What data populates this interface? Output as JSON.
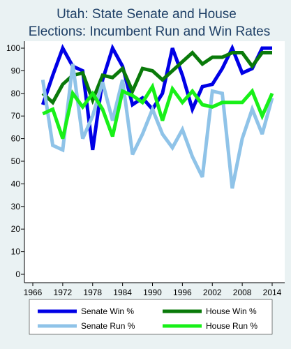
{
  "chart_data": {
    "type": "line",
    "title": [
      "Utah: State Senate and House",
      "Elections: Incumbent Run and Win Rates"
    ],
    "xlabel": "",
    "ylabel": "",
    "xlim": [
      1964,
      2015
    ],
    "ylim": [
      0,
      100
    ],
    "x_ticks": [
      1966,
      1972,
      1978,
      1984,
      1990,
      1996,
      2002,
      2008,
      2014
    ],
    "y_ticks": [
      0,
      10,
      20,
      30,
      40,
      50,
      60,
      70,
      80,
      90,
      100
    ],
    "grid": false,
    "legend_placement": "bottom",
    "x": [
      1968,
      1970,
      1972,
      1974,
      1976,
      1978,
      1980,
      1982,
      1984,
      1986,
      1988,
      1990,
      1992,
      1994,
      1996,
      1998,
      2000,
      2002,
      2004,
      2006,
      2008,
      2010,
      2012,
      2014
    ],
    "series": [
      {
        "name": "Senate Win %",
        "color": "#0000e6",
        "values": [
          75,
          88,
          100,
          92,
          90,
          55,
          86,
          100,
          92,
          75,
          78,
          73,
          80,
          100,
          88,
          73,
          83,
          84,
          91,
          100,
          89,
          91,
          100,
          100
        ]
      },
      {
        "name": "House Win %",
        "color": "#0a7a0a",
        "values": [
          80,
          76,
          84,
          88,
          89,
          77,
          88,
          87,
          91,
          81,
          91,
          90,
          86,
          90,
          94,
          98,
          93,
          96,
          96,
          98,
          98,
          92,
          98,
          98
        ]
      },
      {
        "name": "Senate Run %",
        "color": "#8fc3e8",
        "values": [
          86,
          57,
          55,
          93,
          60,
          70,
          85,
          68,
          86,
          53,
          62,
          73,
          62,
          56,
          64,
          52,
          43,
          81,
          80,
          38,
          60,
          73,
          62,
          78
        ]
      },
      {
        "name": "House Run %",
        "color": "#18f018",
        "values": [
          71,
          73,
          60,
          80,
          74,
          80,
          73,
          61,
          81,
          79,
          76,
          83,
          68,
          82,
          76,
          81,
          75,
          74,
          76,
          76,
          76,
          81,
          70,
          80
        ]
      }
    ]
  },
  "legend": {
    "row1": [
      "Senate Win %",
      "House Win %"
    ],
    "row2": [
      "Senate Run %",
      "House Run %"
    ]
  }
}
